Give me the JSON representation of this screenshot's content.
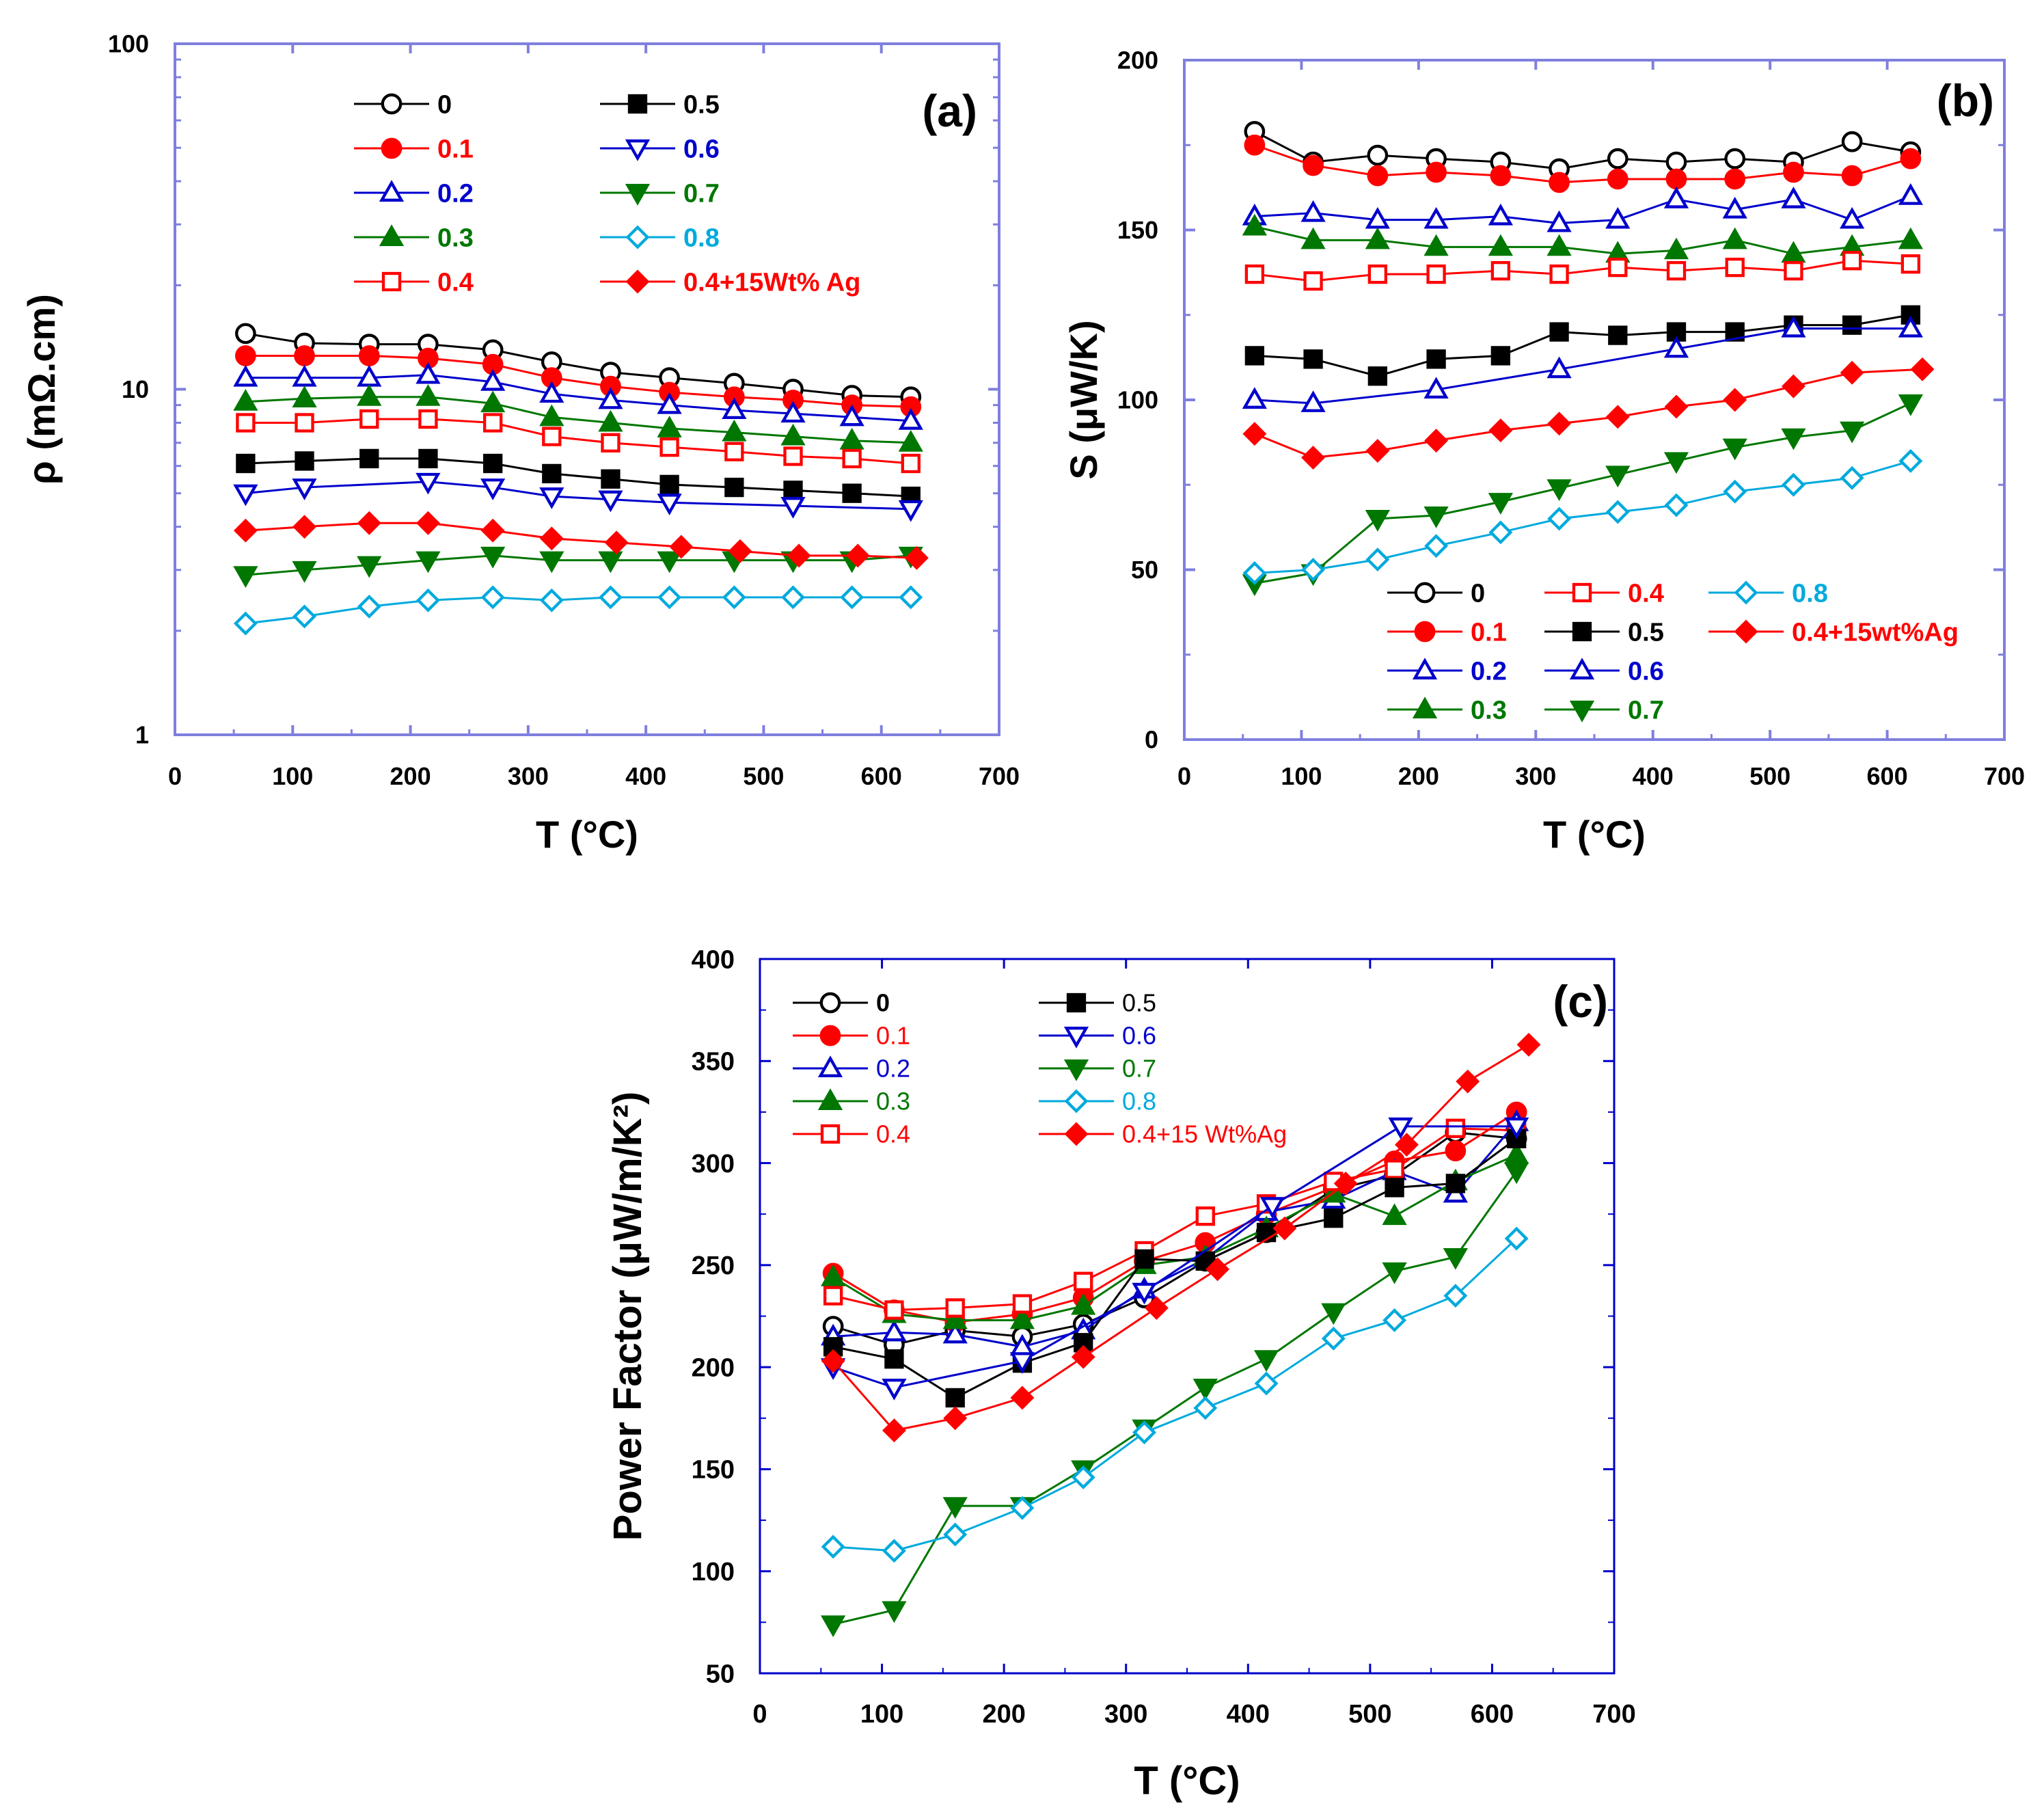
{
  "chart_data": [
    {
      "id": "a",
      "type": "line",
      "panel_label": "(a)",
      "xlabel": "T (°C)",
      "ylabel": "ρ (mΩ.cm)",
      "xlim": [
        0,
        700
      ],
      "ylim": [
        1,
        100
      ],
      "yscale": "log",
      "x_ticks": [
        "0",
        "100",
        "200",
        "300",
        "400",
        "500",
        "600",
        "700"
      ],
      "y_ticks": [
        "1",
        "10",
        "100"
      ],
      "legend": {
        "placement": "top",
        "columns": 2
      },
      "series": [
        {
          "name": "0",
          "color": "#000000",
          "marker": "circle-open",
          "x": [
            60,
            110,
            165,
            215,
            270,
            320,
            370,
            420,
            475,
            525,
            575,
            625
          ],
          "y": [
            14.5,
            13.6,
            13.5,
            13.5,
            13.0,
            12.0,
            11.2,
            10.8,
            10.4,
            10.0,
            9.6,
            9.5
          ]
        },
        {
          "name": "0.1",
          "color": "#ff0000",
          "marker": "circle-filled",
          "x": [
            60,
            110,
            165,
            215,
            270,
            320,
            370,
            420,
            475,
            525,
            575,
            625
          ],
          "y": [
            12.5,
            12.5,
            12.5,
            12.3,
            11.8,
            10.8,
            10.2,
            9.8,
            9.5,
            9.3,
            9.0,
            8.9
          ]
        },
        {
          "name": "0.2",
          "color": "#0000cc",
          "marker": "triangle-up-open",
          "x": [
            60,
            110,
            165,
            215,
            270,
            320,
            370,
            420,
            475,
            525,
            575,
            625
          ],
          "y": [
            10.8,
            10.8,
            10.8,
            11.0,
            10.5,
            9.7,
            9.3,
            9.0,
            8.7,
            8.5,
            8.3,
            8.1
          ]
        },
        {
          "name": "0.3",
          "color": "#007700",
          "marker": "triangle-up-filled",
          "x": [
            60,
            110,
            165,
            215,
            270,
            320,
            370,
            420,
            475,
            525,
            575,
            625
          ],
          "y": [
            9.2,
            9.4,
            9.5,
            9.5,
            9.1,
            8.3,
            8.0,
            7.7,
            7.5,
            7.3,
            7.1,
            7.0
          ]
        },
        {
          "name": "0.4",
          "color": "#ff0000",
          "marker": "square-open",
          "x": [
            60,
            110,
            165,
            215,
            270,
            320,
            370,
            420,
            475,
            525,
            575,
            625
          ],
          "y": [
            8.0,
            8.0,
            8.2,
            8.2,
            8.0,
            7.3,
            7.0,
            6.8,
            6.6,
            6.4,
            6.3,
            6.1
          ]
        },
        {
          "name": "0.5",
          "color": "#000000",
          "marker": "square-filled",
          "x": [
            60,
            110,
            165,
            215,
            270,
            320,
            370,
            420,
            475,
            525,
            575,
            625
          ],
          "y": [
            6.1,
            6.2,
            6.3,
            6.3,
            6.1,
            5.7,
            5.5,
            5.3,
            5.2,
            5.1,
            5.0,
            4.9
          ]
        },
        {
          "name": "0.6",
          "color": "#0000cc",
          "marker": "triangle-down-open",
          "x": [
            60,
            110,
            215,
            270,
            320,
            370,
            420,
            525,
            625
          ],
          "y": [
            5.0,
            5.2,
            5.4,
            5.2,
            4.9,
            4.8,
            4.7,
            4.6,
            4.5
          ]
        },
        {
          "name": "0.7",
          "color": "#007700",
          "marker": "triangle-down-filled",
          "x": [
            60,
            110,
            165,
            215,
            270,
            320,
            370,
            420,
            475,
            525,
            575,
            625
          ],
          "y": [
            2.9,
            3.0,
            3.1,
            3.2,
            3.3,
            3.2,
            3.2,
            3.2,
            3.2,
            3.2,
            3.2,
            3.3
          ]
        },
        {
          "name": "0.8",
          "color": "#00aadd",
          "marker": "diamond-open",
          "x": [
            60,
            110,
            165,
            215,
            270,
            320,
            370,
            420,
            475,
            525,
            575,
            625
          ],
          "y": [
            2.1,
            2.2,
            2.35,
            2.45,
            2.5,
            2.45,
            2.5,
            2.5,
            2.5,
            2.5,
            2.5,
            2.5
          ]
        },
        {
          "name": "0.4+15Wt% Ag",
          "color": "#ff0000",
          "marker": "diamond-filled",
          "x": [
            60,
            110,
            165,
            215,
            270,
            320,
            375,
            430,
            480,
            530,
            580,
            630
          ],
          "y": [
            3.9,
            4.0,
            4.1,
            4.1,
            3.9,
            3.7,
            3.6,
            3.5,
            3.4,
            3.3,
            3.3,
            3.25
          ]
        }
      ]
    },
    {
      "id": "b",
      "type": "line",
      "panel_label": "(b)",
      "xlabel": "T (°C)",
      "ylabel": "S (μW/K)",
      "xlim": [
        0,
        700
      ],
      "ylim": [
        0,
        200
      ],
      "x_ticks": [
        "0",
        "100",
        "200",
        "300",
        "400",
        "500",
        "600",
        "700"
      ],
      "y_ticks": [
        "0",
        "50",
        "100",
        "150",
        "200"
      ],
      "legend": {
        "placement": "bottom-right",
        "columns": 3
      },
      "series": [
        {
          "name": "0",
          "color": "#000000",
          "marker": "circle-open",
          "x": [
            60,
            110,
            165,
            215,
            270,
            320,
            370,
            420,
            470,
            520,
            570,
            620
          ],
          "y": [
            179,
            170,
            172,
            171,
            170,
            168,
            171,
            170,
            171,
            170,
            176,
            173
          ]
        },
        {
          "name": "0.1",
          "color": "#ff0000",
          "marker": "circle-filled",
          "x": [
            60,
            110,
            165,
            215,
            270,
            320,
            370,
            420,
            470,
            520,
            570,
            620
          ],
          "y": [
            175,
            169,
            166,
            167,
            166,
            164,
            165,
            165,
            165,
            167,
            166,
            171
          ]
        },
        {
          "name": "0.2",
          "color": "#0000cc",
          "marker": "triangle-up-open",
          "x": [
            60,
            110,
            165,
            215,
            270,
            320,
            370,
            420,
            470,
            520,
            570,
            620
          ],
          "y": [
            154,
            155,
            153,
            153,
            154,
            152,
            153,
            159,
            156,
            159,
            153,
            160
          ]
        },
        {
          "name": "0.3",
          "color": "#007700",
          "marker": "triangle-up-filled",
          "x": [
            60,
            110,
            165,
            215,
            270,
            320,
            370,
            420,
            470,
            520,
            570,
            620
          ],
          "y": [
            151,
            147,
            147,
            145,
            145,
            145,
            143,
            144,
            147,
            143,
            145,
            147
          ]
        },
        {
          "name": "0.4",
          "color": "#ff0000",
          "marker": "square-open",
          "x": [
            60,
            110,
            165,
            215,
            270,
            320,
            370,
            420,
            470,
            520,
            570,
            620
          ],
          "y": [
            137,
            135,
            137,
            137,
            138,
            137,
            139,
            138,
            139,
            138,
            141,
            140
          ]
        },
        {
          "name": "0.5",
          "color": "#000000",
          "marker": "square-filled",
          "x": [
            60,
            110,
            165,
            215,
            270,
            320,
            370,
            420,
            470,
            520,
            570,
            620
          ],
          "y": [
            113,
            112,
            107,
            112,
            113,
            120,
            119,
            120,
            120,
            122,
            122,
            125
          ]
        },
        {
          "name": "0.6",
          "color": "#0000cc",
          "marker": "triangle-up-open",
          "x": [
            60,
            110,
            215,
            320,
            420,
            520,
            620
          ],
          "y": [
            100,
            99,
            103,
            109,
            115,
            121,
            121
          ]
        },
        {
          "name": "0.7",
          "color": "#007700",
          "marker": "triangle-down-filled",
          "x": [
            60,
            110,
            165,
            215,
            270,
            320,
            370,
            420,
            470,
            520,
            570,
            620
          ],
          "y": [
            46,
            49,
            65,
            66,
            70,
            74,
            78,
            82,
            86,
            89,
            91,
            99
          ]
        },
        {
          "name": "0.8",
          "color": "#00aadd",
          "marker": "diamond-open",
          "x": [
            60,
            110,
            165,
            215,
            270,
            320,
            370,
            420,
            470,
            520,
            570,
            620
          ],
          "y": [
            49,
            50,
            53,
            57,
            61,
            65,
            67,
            69,
            73,
            75,
            77,
            82
          ]
        },
        {
          "name": "0.4+15wt%Ag",
          "color": "#ff0000",
          "marker": "diamond-filled",
          "x": [
            60,
            110,
            165,
            215,
            270,
            320,
            370,
            420,
            470,
            520,
            570,
            630
          ],
          "y": [
            90,
            83,
            85,
            88,
            91,
            93,
            95,
            98,
            100,
            104,
            108,
            109
          ]
        }
      ]
    },
    {
      "id": "c",
      "type": "line",
      "panel_label": "(c)",
      "xlabel": "T (°C)",
      "ylabel": "Power Factor (μW/m/K²)",
      "xlim": [
        0,
        700
      ],
      "ylim": [
        50,
        400
      ],
      "x_ticks": [
        "0",
        "100",
        "200",
        "300",
        "400",
        "500",
        "600",
        "700"
      ],
      "y_ticks": [
        "50",
        "100",
        "150",
        "200",
        "250",
        "300",
        "350",
        "400"
      ],
      "legend": {
        "placement": "top-left",
        "columns": 2
      },
      "series": [
        {
          "name": "0",
          "color": "#000000",
          "marker": "circle-open",
          "x": [
            60,
            110,
            160,
            215,
            265,
            315,
            365,
            415,
            470,
            520,
            570,
            620
          ],
          "y": [
            220,
            211,
            218,
            215,
            221,
            234,
            252,
            266,
            287,
            294,
            315,
            312
          ]
        },
        {
          "name": "0.1",
          "color": "#ff0000",
          "marker": "circle-filled",
          "x": [
            60,
            110,
            160,
            215,
            265,
            315,
            365,
            415,
            470,
            520,
            570,
            620
          ],
          "y": [
            246,
            228,
            222,
            226,
            234,
            252,
            261,
            275,
            288,
            301,
            306,
            325
          ]
        },
        {
          "name": "0.2",
          "color": "#0000cc",
          "marker": "triangle-up-open",
          "x": [
            60,
            110,
            160,
            215,
            265,
            315,
            365,
            415,
            470,
            520,
            570,
            620
          ],
          "y": [
            215,
            217,
            216,
            210,
            218,
            238,
            253,
            276,
            282,
            296,
            285,
            320
          ]
        },
        {
          "name": "0.3",
          "color": "#007700",
          "marker": "triangle-up-filled",
          "x": [
            60,
            110,
            160,
            215,
            265,
            315,
            365,
            415,
            470,
            520,
            570,
            620
          ],
          "y": [
            244,
            226,
            223,
            223,
            230,
            250,
            254,
            268,
            285,
            274,
            291,
            304
          ]
        },
        {
          "name": "0.4",
          "color": "#ff0000",
          "marker": "square-open",
          "x": [
            60,
            110,
            160,
            215,
            265,
            315,
            365,
            415,
            470,
            520,
            570,
            620
          ],
          "y": [
            235,
            228,
            229,
            231,
            242,
            257,
            274,
            280,
            291,
            297,
            317,
            316
          ]
        },
        {
          "name": "0.5",
          "color": "#000000",
          "marker": "square-filled",
          "x": [
            60,
            110,
            160,
            215,
            265,
            315,
            365,
            415,
            470,
            520,
            570,
            620
          ],
          "y": [
            210,
            204,
            185,
            202,
            212,
            253,
            252,
            266,
            273,
            288,
            290,
            312
          ]
        },
        {
          "name": "0.6",
          "color": "#0000cc",
          "marker": "triangle-down-open",
          "x": [
            60,
            110,
            215,
            315,
            420,
            525,
            620
          ],
          "y": [
            200,
            190,
            203,
            237,
            279,
            318,
            318
          ]
        },
        {
          "name": "0.7",
          "color": "#007700",
          "marker": "triangle-down-filled",
          "x": [
            60,
            110,
            160,
            215,
            265,
            315,
            365,
            415,
            470,
            520,
            570,
            620
          ],
          "y": [
            74,
            81,
            132,
            132,
            150,
            170,
            190,
            204,
            227,
            247,
            254,
            296
          ]
        },
        {
          "name": "0.8",
          "color": "#00aadd",
          "marker": "diamond-open",
          "x": [
            60,
            110,
            160,
            215,
            265,
            315,
            365,
            415,
            470,
            520,
            570,
            620
          ],
          "y": [
            112,
            110,
            118,
            131,
            146,
            168,
            180,
            192,
            214,
            223,
            235,
            263
          ]
        },
        {
          "name": "0.4+15 Wt%Ag",
          "color": "#ff0000",
          "marker": "diamond-filled",
          "x": [
            60,
            110,
            160,
            215,
            265,
            325,
            375,
            430,
            480,
            530,
            580,
            630
          ],
          "y": [
            203,
            169,
            175,
            185,
            205,
            229,
            248,
            268,
            290,
            309,
            340,
            358
          ]
        }
      ]
    }
  ]
}
